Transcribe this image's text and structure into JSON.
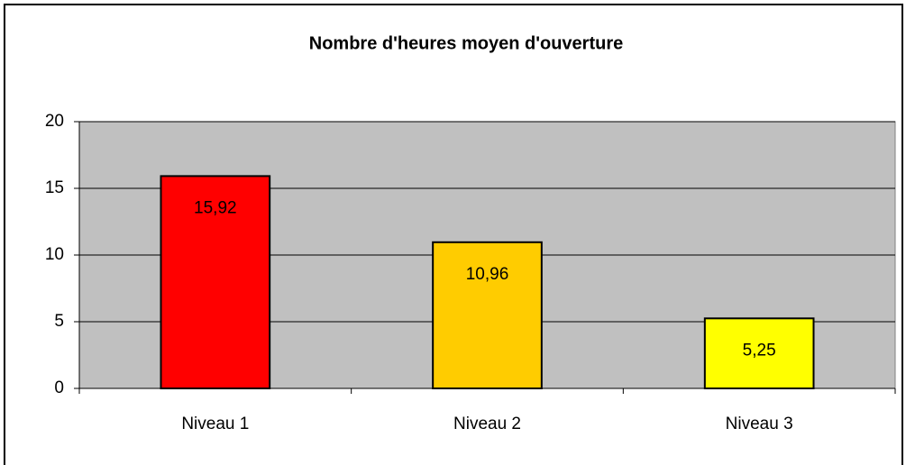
{
  "chart_data": {
    "type": "bar",
    "title": "Nombre d'heures moyen d'ouverture",
    "categories": [
      "Niveau 1",
      "Niveau 2",
      "Niveau 3"
    ],
    "values": [
      15.92,
      10.96,
      5.25
    ],
    "value_labels": [
      "15,92",
      "10,96",
      "5,25"
    ],
    "colors": [
      "#ff0000",
      "#ffcc00",
      "#ffff00"
    ],
    "ylim": [
      0,
      20
    ],
    "yticks": [
      0,
      5,
      10,
      15,
      20
    ],
    "grid": true
  }
}
